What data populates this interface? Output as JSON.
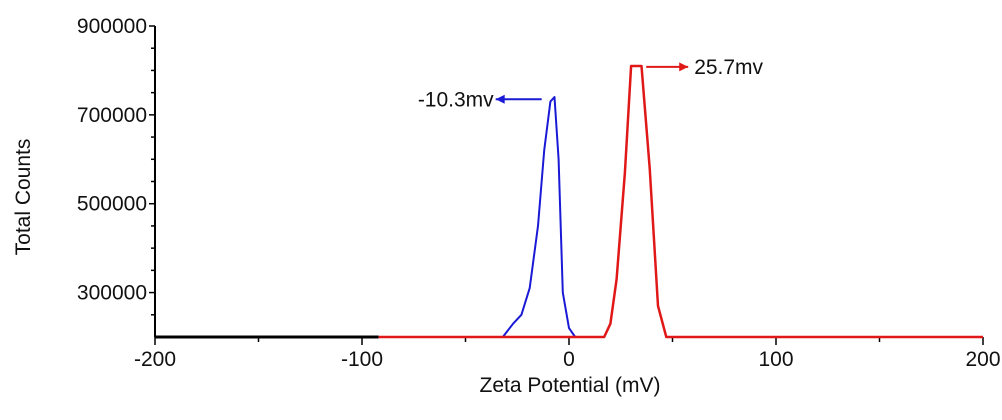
{
  "chart_data": {
    "type": "line",
    "xlabel": "Zeta Potential (mV)",
    "ylabel": "Total Counts",
    "xlim": [
      -200,
      200
    ],
    "ylim": [
      200000,
      900000
    ],
    "x_ticks": [
      -200,
      -100,
      0,
      100,
      200
    ],
    "x_tick_labels": [
      "-200",
      "-100",
      "0",
      "100",
      "200"
    ],
    "y_ticks": [
      300000,
      500000,
      700000,
      900000
    ],
    "y_tick_labels": [
      "300000",
      "500000",
      "700000",
      "900000"
    ],
    "grid": false,
    "baseline_segment": {
      "color": "#000000",
      "x": [
        -200,
        -92
      ]
    },
    "series": [
      {
        "color": "#1a1ad6",
        "x": [
          -32,
          -27,
          -23,
          -19,
          -15,
          -12,
          -9,
          -7,
          -5,
          -3,
          0,
          3,
          6
        ],
        "y": [
          200000,
          230000,
          250000,
          310000,
          450000,
          620000,
          730000,
          740000,
          600000,
          300000,
          220000,
          200000,
          200000
        ]
      },
      {
        "color": "#e01818",
        "x": [
          -92,
          17,
          20,
          23,
          27,
          30,
          35,
          39,
          43,
          47,
          200
        ],
        "y": [
          200000,
          200000,
          230000,
          330000,
          570000,
          810000,
          810000,
          580000,
          270000,
          200000,
          200000
        ]
      }
    ],
    "annotations": [
      {
        "text": "-10.3mv",
        "color": "#1a1ad6",
        "arrow": "left",
        "peak_x": -10.3,
        "y": 735000
      },
      {
        "text": "25.7mv",
        "color": "#e01818",
        "arrow": "right",
        "peak_x": 25.7,
        "y": 808000
      }
    ]
  }
}
